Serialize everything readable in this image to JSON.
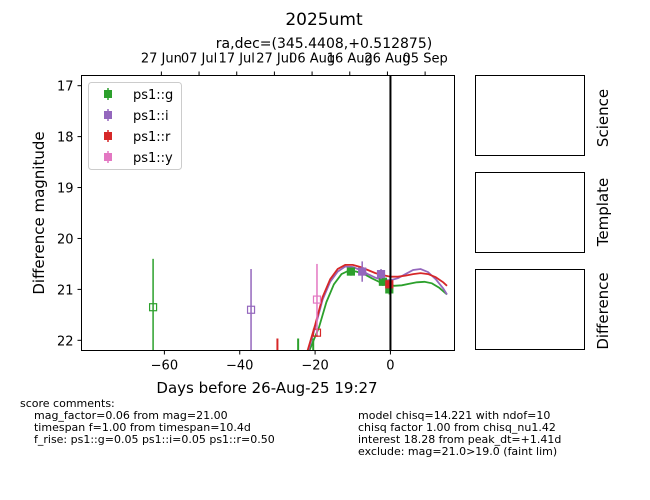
{
  "chart_data": {
    "type": "scatter",
    "title": "2025umt",
    "subtitle": "ra,dec=(345.4408,+0.512875)",
    "xlabel": "Days before 26-Aug-25 19:27",
    "ylabel": "Difference magnitude",
    "xlim": [
      -82,
      17
    ],
    "ylim": [
      22.2,
      16.8
    ],
    "y_inverted": true,
    "xticks": [
      -60,
      -40,
      -20,
      0
    ],
    "yticks": [
      17,
      18,
      19,
      20,
      21,
      22
    ],
    "top_ticks": [
      {
        "x": -60.8,
        "label": "27 Jun"
      },
      {
        "x": -50.8,
        "label": "07 Jul"
      },
      {
        "x": -40.8,
        "label": "17 Jul"
      },
      {
        "x": -30.8,
        "label": "27 Jul"
      },
      {
        "x": -20.8,
        "label": "06 Aug"
      },
      {
        "x": -10.8,
        "label": "16 Aug"
      },
      {
        "x": -0.8,
        "label": "26 Aug"
      },
      {
        "x": 9.2,
        "label": "05 Sep"
      }
    ],
    "vline_x": 0,
    "legend_position": "upper-left",
    "series": [
      {
        "name": "ps1::g",
        "color": "#2ca02c",
        "points": [
          {
            "x": -63,
            "y": 21.35,
            "err": 0.95,
            "filled": false
          },
          {
            "x": -10.5,
            "y": 20.65,
            "err": 0.08,
            "filled": true
          },
          {
            "x": -2,
            "y": 20.85,
            "err": 0.08,
            "filled": true
          },
          {
            "x": -0.3,
            "y": 21.0,
            "err": 0.1,
            "filled": true
          }
        ],
        "limits": [
          {
            "x": -24.5,
            "y": 22.2
          },
          {
            "x": -20.5,
            "y": 22.2
          }
        ],
        "model": [
          [
            -21.5,
            22.2
          ],
          [
            -19,
            21.75
          ],
          [
            -17,
            21.25
          ],
          [
            -15,
            20.9
          ],
          [
            -13,
            20.7
          ],
          [
            -11,
            20.63
          ],
          [
            -9,
            20.65
          ],
          [
            -7,
            20.7
          ],
          [
            -5,
            20.78
          ],
          [
            -3,
            20.85
          ],
          [
            -1,
            20.9
          ],
          [
            1,
            20.93
          ],
          [
            3,
            20.92
          ],
          [
            5,
            20.89
          ],
          [
            7,
            20.86
          ],
          [
            9,
            20.85
          ],
          [
            11,
            20.88
          ],
          [
            13,
            20.97
          ],
          [
            15,
            21.1
          ]
        ]
      },
      {
        "name": "ps1::i",
        "color": "#9467bd",
        "points": [
          {
            "x": -37,
            "y": 21.4,
            "err": 0.8,
            "filled": false
          },
          {
            "x": -7.5,
            "y": 20.65,
            "err": 0.2,
            "filled": true
          },
          {
            "x": -2.5,
            "y": 20.7,
            "err": 0.1,
            "filled": true
          }
        ],
        "limits": [],
        "model": [
          [
            -21.8,
            22.2
          ],
          [
            -20,
            21.75
          ],
          [
            -18,
            21.2
          ],
          [
            -16,
            20.85
          ],
          [
            -14,
            20.65
          ],
          [
            -12,
            20.55
          ],
          [
            -10,
            20.56
          ],
          [
            -8,
            20.62
          ],
          [
            -6,
            20.7
          ],
          [
            -4,
            20.77
          ],
          [
            -2,
            20.82
          ],
          [
            0,
            20.82
          ],
          [
            2,
            20.78
          ],
          [
            4,
            20.7
          ],
          [
            6,
            20.62
          ],
          [
            8,
            20.6
          ],
          [
            10,
            20.66
          ],
          [
            12,
            20.8
          ],
          [
            14,
            20.98
          ],
          [
            15,
            21.1
          ]
        ]
      },
      {
        "name": "ps1::r",
        "color": "#d62728",
        "points": [
          {
            "x": -19.5,
            "y": 21.85,
            "err": 0.08,
            "filled": false
          },
          {
            "x": -0.3,
            "y": 20.9,
            "err": 0.07,
            "filled": true
          }
        ],
        "limits": [
          {
            "x": -30,
            "y": 22.2
          }
        ],
        "model": [
          [
            -22,
            22.2
          ],
          [
            -20,
            21.7
          ],
          [
            -18,
            21.15
          ],
          [
            -16,
            20.8
          ],
          [
            -14,
            20.6
          ],
          [
            -12,
            20.52
          ],
          [
            -10,
            20.52
          ],
          [
            -8,
            20.56
          ],
          [
            -6,
            20.62
          ],
          [
            -4,
            20.68
          ],
          [
            -2,
            20.72
          ],
          [
            0,
            20.75
          ],
          [
            2,
            20.75
          ],
          [
            4,
            20.73
          ],
          [
            6,
            20.7
          ],
          [
            8,
            20.68
          ],
          [
            10,
            20.7
          ],
          [
            12,
            20.76
          ],
          [
            14,
            20.86
          ],
          [
            15,
            20.93
          ]
        ]
      },
      {
        "name": "ps1::y",
        "color": "#e377c2",
        "points": [
          {
            "x": -19.5,
            "y": 21.2,
            "err": 0.7,
            "filled": false
          }
        ],
        "limits": [],
        "model": []
      }
    ]
  },
  "side_panels": [
    "Science",
    "Template",
    "Difference"
  ],
  "comments_left": "score comments:\n    mag_factor=0.06 from mag=21.00\n    timespan f=1.00 from timespan=10.4d\n    f_rise: ps1::g=0.05 ps1::i=0.05 ps1::r=0.50",
  "comments_right": "model chisq=14.221 with ndof=10\nchisq factor 1.00 from chisq_nu1.42\ninterest 18.28 from peak_dt=+1.41d\nexclude: mag=21.0>19.0 (faint lim)"
}
